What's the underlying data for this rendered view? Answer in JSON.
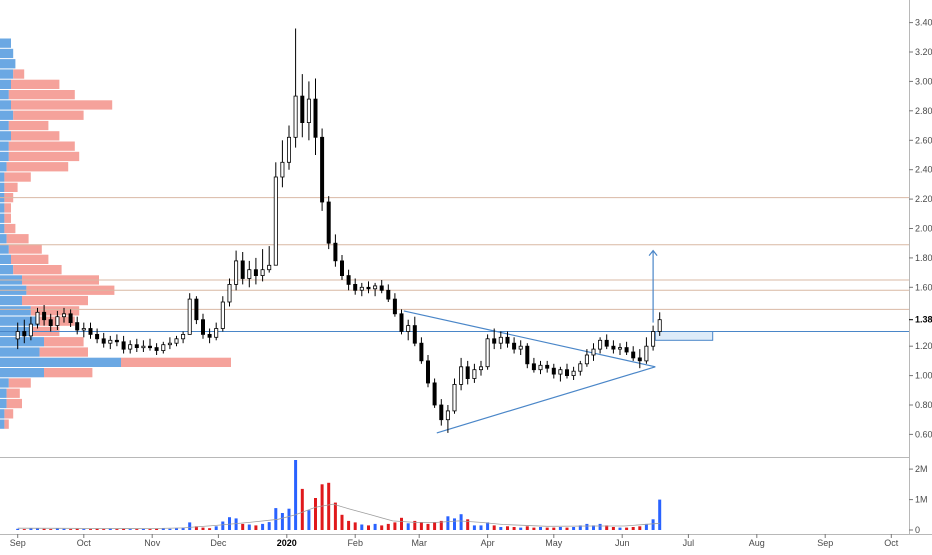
{
  "chart_data": {
    "type": "candlestick",
    "y_axis": {
      "ticks": [
        "0.60",
        "0.80",
        "1.00",
        "1.20",
        "1.38",
        "1.60",
        "1.80",
        "2.00",
        "2.20",
        "2.40",
        "2.60",
        "2.80",
        "3.00",
        "3.20",
        "3.40"
      ],
      "tick_values": [
        0.6,
        0.8,
        1.0,
        1.2,
        1.38,
        1.6,
        1.8,
        2.0,
        2.2,
        2.4,
        2.6,
        2.8,
        3.0,
        3.2,
        3.4
      ],
      "range": [
        0.46,
        3.54
      ],
      "last_price_label": "1.38",
      "last_price": 1.38
    },
    "volume_axis": {
      "ticks": [
        "0",
        "1M",
        "2M"
      ],
      "tick_values": [
        0,
        1000000,
        2000000
      ],
      "range": [
        0,
        2300000
      ]
    },
    "x_axis": {
      "labels": [
        "Sep",
        "Oct",
        "Nov",
        "Dec",
        "2020",
        "Feb",
        "Mar",
        "Apr",
        "May",
        "Jun",
        "Jul",
        "Aug",
        "Sep",
        "Oct"
      ],
      "bold_label": "2020",
      "label_day_index": [
        0,
        30,
        61,
        91,
        122,
        153,
        182,
        213,
        243,
        274,
        304,
        335,
        366,
        396
      ],
      "range_days": [
        -8,
        404
      ]
    },
    "horizontal_levels": [
      {
        "price": 2.21,
        "color": "#d9b8a4"
      },
      {
        "price": 1.89,
        "color": "#d9b8a4"
      },
      {
        "price": 1.65,
        "color": "#d9b8a4"
      },
      {
        "price": 1.58,
        "color": "#d9b8a4"
      },
      {
        "price": 1.45,
        "color": "#d9b8a4"
      },
      {
        "price": 1.3,
        "color": "#4a86c8"
      }
    ],
    "trendlines": [
      {
        "from": [
          175,
          1.44
        ],
        "to": [
          289,
          1.06
        ],
        "color": "#4a86c8"
      },
      {
        "from": [
          190,
          0.61
        ],
        "to": [
          289,
          1.06
        ],
        "color": "#4a86c8"
      }
    ],
    "target_arrow": {
      "day": 288,
      "from_price": 1.36,
      "to_price": 1.85,
      "color": "#4a86c8"
    },
    "zone_box": {
      "day_start": 289,
      "day_end": 315,
      "price_low": 1.24,
      "price_high": 1.3,
      "color": "#4a86c8"
    },
    "colors": {
      "up": "#ffffff",
      "down": "#000000",
      "wick": "#000000",
      "vol_up": "#2962ff",
      "vol_down": "#e0191c",
      "vp_up": "#5b9ee0",
      "vp_down": "#f28b82",
      "grid": "#e6e6e6",
      "axis_text": "#4a4a4a"
    },
    "candles": [
      [
        0,
        1.25,
        1.36,
        1.18,
        1.3
      ],
      [
        3,
        1.3,
        1.38,
        1.22,
        1.27
      ],
      [
        6,
        1.27,
        1.4,
        1.24,
        1.35
      ],
      [
        9,
        1.35,
        1.46,
        1.32,
        1.43
      ],
      [
        12,
        1.43,
        1.48,
        1.34,
        1.38
      ],
      [
        15,
        1.38,
        1.42,
        1.3,
        1.34
      ],
      [
        18,
        1.34,
        1.44,
        1.31,
        1.4
      ],
      [
        21,
        1.4,
        1.46,
        1.36,
        1.42
      ],
      [
        24,
        1.42,
        1.45,
        1.33,
        1.36
      ],
      [
        27,
        1.36,
        1.4,
        1.28,
        1.31
      ],
      [
        30,
        1.31,
        1.36,
        1.26,
        1.32
      ],
      [
        33,
        1.32,
        1.36,
        1.25,
        1.28
      ],
      [
        36,
        1.28,
        1.32,
        1.22,
        1.25
      ],
      [
        39,
        1.25,
        1.29,
        1.19,
        1.22
      ],
      [
        42,
        1.22,
        1.27,
        1.18,
        1.24
      ],
      [
        45,
        1.24,
        1.28,
        1.2,
        1.23
      ],
      [
        48,
        1.23,
        1.27,
        1.15,
        1.18
      ],
      [
        51,
        1.18,
        1.24,
        1.15,
        1.21
      ],
      [
        54,
        1.21,
        1.25,
        1.16,
        1.19
      ],
      [
        57,
        1.19,
        1.24,
        1.16,
        1.2
      ],
      [
        60,
        1.2,
        1.25,
        1.17,
        1.19
      ],
      [
        63,
        1.19,
        1.22,
        1.14,
        1.17
      ],
      [
        66,
        1.17,
        1.23,
        1.15,
        1.21
      ],
      [
        69,
        1.21,
        1.26,
        1.18,
        1.22
      ],
      [
        72,
        1.22,
        1.27,
        1.2,
        1.25
      ],
      [
        75,
        1.25,
        1.3,
        1.22,
        1.28
      ],
      [
        78,
        1.28,
        1.56,
        1.28,
        1.52
      ],
      [
        81,
        1.52,
        1.54,
        1.35,
        1.38
      ],
      [
        84,
        1.38,
        1.42,
        1.25,
        1.28
      ],
      [
        87,
        1.28,
        1.32,
        1.22,
        1.26
      ],
      [
        90,
        1.26,
        1.36,
        1.24,
        1.32
      ],
      [
        93,
        1.32,
        1.54,
        1.3,
        1.5
      ],
      [
        96,
        1.5,
        1.66,
        1.47,
        1.62
      ],
      [
        99,
        1.62,
        1.85,
        1.58,
        1.78
      ],
      [
        102,
        1.78,
        1.84,
        1.62,
        1.66
      ],
      [
        105,
        1.66,
        1.78,
        1.6,
        1.72
      ],
      [
        108,
        1.72,
        1.8,
        1.62,
        1.68
      ],
      [
        111,
        1.68,
        1.86,
        1.64,
        1.72
      ],
      [
        114,
        1.72,
        1.88,
        1.7,
        1.75
      ],
      [
        117,
        1.75,
        2.45,
        1.75,
        2.35
      ],
      [
        120,
        2.35,
        2.6,
        2.28,
        2.45
      ],
      [
        123,
        2.45,
        2.7,
        2.4,
        2.62
      ],
      [
        126,
        2.62,
        3.36,
        2.55,
        2.9
      ],
      [
        129,
        2.9,
        3.05,
        2.62,
        2.72
      ],
      [
        132,
        2.72,
        3.0,
        2.6,
        2.88
      ],
      [
        135,
        2.88,
        3.02,
        2.5,
        2.62
      ],
      [
        138,
        2.62,
        2.68,
        2.12,
        2.18
      ],
      [
        141,
        2.18,
        2.22,
        1.86,
        1.9
      ],
      [
        144,
        1.9,
        1.96,
        1.74,
        1.78
      ],
      [
        147,
        1.78,
        1.82,
        1.65,
        1.68
      ],
      [
        150,
        1.68,
        1.72,
        1.58,
        1.62
      ],
      [
        153,
        1.62,
        1.66,
        1.55,
        1.58
      ],
      [
        156,
        1.58,
        1.63,
        1.54,
        1.6
      ],
      [
        159,
        1.6,
        1.64,
        1.56,
        1.59
      ],
      [
        162,
        1.59,
        1.63,
        1.54,
        1.61
      ],
      [
        165,
        1.61,
        1.65,
        1.56,
        1.58
      ],
      [
        168,
        1.58,
        1.62,
        1.5,
        1.52
      ],
      [
        171,
        1.52,
        1.56,
        1.4,
        1.42
      ],
      [
        174,
        1.42,
        1.45,
        1.28,
        1.3
      ],
      [
        177,
        1.3,
        1.38,
        1.24,
        1.34
      ],
      [
        180,
        1.34,
        1.4,
        1.2,
        1.22
      ],
      [
        183,
        1.22,
        1.26,
        1.08,
        1.1
      ],
      [
        186,
        1.1,
        1.14,
        0.92,
        0.95
      ],
      [
        189,
        0.95,
        0.98,
        0.78,
        0.8
      ],
      [
        192,
        0.8,
        0.84,
        0.66,
        0.7
      ],
      [
        195,
        0.7,
        0.8,
        0.61,
        0.76
      ],
      [
        198,
        0.76,
        0.98,
        0.74,
        0.94
      ],
      [
        201,
        0.94,
        1.12,
        0.9,
        1.06
      ],
      [
        204,
        1.06,
        1.1,
        0.94,
        0.98
      ],
      [
        207,
        0.98,
        1.08,
        0.95,
        1.04
      ],
      [
        210,
        1.04,
        1.1,
        1.0,
        1.06
      ],
      [
        213,
        1.06,
        1.28,
        1.04,
        1.25
      ],
      [
        216,
        1.25,
        1.32,
        1.18,
        1.22
      ],
      [
        219,
        1.22,
        1.3,
        1.18,
        1.26
      ],
      [
        222,
        1.26,
        1.3,
        1.19,
        1.22
      ],
      [
        225,
        1.22,
        1.26,
        1.15,
        1.18
      ],
      [
        228,
        1.18,
        1.24,
        1.14,
        1.2
      ],
      [
        231,
        1.2,
        1.22,
        1.05,
        1.08
      ],
      [
        234,
        1.08,
        1.12,
        1.02,
        1.04
      ],
      [
        237,
        1.04,
        1.1,
        1.01,
        1.07
      ],
      [
        240,
        1.07,
        1.1,
        1.02,
        1.05
      ],
      [
        243,
        1.05,
        1.08,
        0.98,
        1.01
      ],
      [
        246,
        1.01,
        1.06,
        0.96,
        1.04
      ],
      [
        249,
        1.04,
        1.08,
        0.98,
        1.0
      ],
      [
        252,
        1.0,
        1.06,
        0.97,
        1.03
      ],
      [
        255,
        1.03,
        1.1,
        1.0,
        1.08
      ],
      [
        258,
        1.08,
        1.18,
        1.06,
        1.14
      ],
      [
        261,
        1.14,
        1.22,
        1.1,
        1.18
      ],
      [
        264,
        1.18,
        1.26,
        1.15,
        1.24
      ],
      [
        267,
        1.24,
        1.28,
        1.18,
        1.2
      ],
      [
        270,
        1.2,
        1.24,
        1.15,
        1.18
      ],
      [
        273,
        1.18,
        1.22,
        1.14,
        1.19
      ],
      [
        276,
        1.19,
        1.23,
        1.14,
        1.16
      ],
      [
        279,
        1.16,
        1.2,
        1.1,
        1.12
      ],
      [
        282,
        1.12,
        1.18,
        1.05,
        1.1
      ],
      [
        285,
        1.1,
        1.26,
        1.08,
        1.2
      ],
      [
        288,
        1.2,
        1.34,
        1.17,
        1.3
      ],
      [
        291,
        1.3,
        1.43,
        1.27,
        1.38
      ]
    ],
    "volumes": [
      [
        0,
        40000,
        1
      ],
      [
        3,
        30000,
        0
      ],
      [
        6,
        50000,
        1
      ],
      [
        9,
        60000,
        1
      ],
      [
        12,
        40000,
        0
      ],
      [
        15,
        30000,
        0
      ],
      [
        18,
        50000,
        1
      ],
      [
        21,
        40000,
        1
      ],
      [
        24,
        30000,
        0
      ],
      [
        27,
        40000,
        0
      ],
      [
        30,
        30000,
        1
      ],
      [
        33,
        30000,
        0
      ],
      [
        36,
        40000,
        0
      ],
      [
        39,
        30000,
        0
      ],
      [
        42,
        50000,
        1
      ],
      [
        45,
        30000,
        0
      ],
      [
        48,
        40000,
        0
      ],
      [
        51,
        30000,
        1
      ],
      [
        54,
        30000,
        0
      ],
      [
        57,
        40000,
        1
      ],
      [
        60,
        30000,
        0
      ],
      [
        63,
        40000,
        0
      ],
      [
        66,
        50000,
        1
      ],
      [
        69,
        40000,
        1
      ],
      [
        72,
        60000,
        1
      ],
      [
        75,
        80000,
        1
      ],
      [
        78,
        250000,
        1
      ],
      [
        81,
        120000,
        0
      ],
      [
        84,
        80000,
        0
      ],
      [
        87,
        60000,
        0
      ],
      [
        90,
        120000,
        1
      ],
      [
        93,
        280000,
        1
      ],
      [
        96,
        420000,
        1
      ],
      [
        99,
        380000,
        1
      ],
      [
        102,
        200000,
        0
      ],
      [
        105,
        180000,
        1
      ],
      [
        108,
        150000,
        0
      ],
      [
        111,
        200000,
        1
      ],
      [
        114,
        260000,
        1
      ],
      [
        117,
        720000,
        1
      ],
      [
        120,
        560000,
        1
      ],
      [
        123,
        700000,
        1
      ],
      [
        126,
        2300000,
        1
      ],
      [
        129,
        1350000,
        0
      ],
      [
        132,
        650000,
        1
      ],
      [
        135,
        1050000,
        0
      ],
      [
        138,
        1500000,
        0
      ],
      [
        141,
        1550000,
        0
      ],
      [
        144,
        900000,
        0
      ],
      [
        147,
        500000,
        0
      ],
      [
        150,
        300000,
        0
      ],
      [
        153,
        250000,
        0
      ],
      [
        156,
        180000,
        1
      ],
      [
        159,
        150000,
        0
      ],
      [
        162,
        200000,
        1
      ],
      [
        165,
        150000,
        0
      ],
      [
        168,
        200000,
        0
      ],
      [
        171,
        250000,
        0
      ],
      [
        174,
        400000,
        0
      ],
      [
        177,
        220000,
        1
      ],
      [
        180,
        300000,
        0
      ],
      [
        183,
        250000,
        0
      ],
      [
        186,
        200000,
        0
      ],
      [
        189,
        250000,
        0
      ],
      [
        192,
        300000,
        0
      ],
      [
        195,
        450000,
        1
      ],
      [
        198,
        380000,
        1
      ],
      [
        201,
        520000,
        1
      ],
      [
        204,
        350000,
        0
      ],
      [
        207,
        150000,
        1
      ],
      [
        210,
        150000,
        1
      ],
      [
        213,
        250000,
        1
      ],
      [
        216,
        150000,
        0
      ],
      [
        219,
        100000,
        1
      ],
      [
        222,
        120000,
        0
      ],
      [
        225,
        100000,
        0
      ],
      [
        228,
        80000,
        1
      ],
      [
        231,
        120000,
        0
      ],
      [
        234,
        80000,
        0
      ],
      [
        237,
        100000,
        1
      ],
      [
        240,
        80000,
        0
      ],
      [
        243,
        80000,
        0
      ],
      [
        246,
        100000,
        1
      ],
      [
        249,
        80000,
        0
      ],
      [
        252,
        100000,
        1
      ],
      [
        255,
        150000,
        1
      ],
      [
        258,
        200000,
        1
      ],
      [
        261,
        150000,
        1
      ],
      [
        264,
        200000,
        1
      ],
      [
        267,
        150000,
        0
      ],
      [
        270,
        100000,
        0
      ],
      [
        273,
        80000,
        1
      ],
      [
        276,
        80000,
        0
      ],
      [
        279,
        100000,
        0
      ],
      [
        282,
        120000,
        0
      ],
      [
        285,
        200000,
        1
      ],
      [
        288,
        350000,
        1
      ],
      [
        291,
        1000000,
        1
      ]
    ],
    "volume_ma": [
      [
        0,
        60000
      ],
      [
        20,
        55000
      ],
      [
        40,
        50000
      ],
      [
        60,
        45000
      ],
      [
        75,
        70000
      ],
      [
        90,
        150000
      ],
      [
        105,
        250000
      ],
      [
        118,
        350000
      ],
      [
        126,
        500000
      ],
      [
        135,
        750000
      ],
      [
        143,
        850000
      ],
      [
        150,
        700000
      ],
      [
        160,
        500000
      ],
      [
        170,
        300000
      ],
      [
        180,
        250000
      ],
      [
        190,
        250000
      ],
      [
        200,
        300000
      ],
      [
        210,
        250000
      ],
      [
        220,
        180000
      ],
      [
        240,
        120000
      ],
      [
        260,
        130000
      ],
      [
        275,
        130000
      ],
      [
        291,
        220000
      ]
    ],
    "volume_profile": [
      [
        3.26,
        0.05,
        0.0
      ],
      [
        3.19,
        0.06,
        0.0
      ],
      [
        3.12,
        0.07,
        0.0
      ],
      [
        3.05,
        0.06,
        0.05
      ],
      [
        2.98,
        0.05,
        0.22
      ],
      [
        2.91,
        0.04,
        0.3
      ],
      [
        2.84,
        0.05,
        0.46
      ],
      [
        2.77,
        0.06,
        0.32
      ],
      [
        2.7,
        0.04,
        0.18
      ],
      [
        2.63,
        0.05,
        0.22
      ],
      [
        2.56,
        0.04,
        0.3
      ],
      [
        2.49,
        0.04,
        0.32
      ],
      [
        2.42,
        0.03,
        0.28
      ],
      [
        2.35,
        0.02,
        0.12
      ],
      [
        2.28,
        0.02,
        0.06
      ],
      [
        2.21,
        0.02,
        0.04
      ],
      [
        2.14,
        0.02,
        0.03
      ],
      [
        2.07,
        0.02,
        0.03
      ],
      [
        2.0,
        0.02,
        0.05
      ],
      [
        1.93,
        0.03,
        0.1
      ],
      [
        1.86,
        0.04,
        0.15
      ],
      [
        1.79,
        0.05,
        0.17
      ],
      [
        1.72,
        0.06,
        0.22
      ],
      [
        1.65,
        0.1,
        0.35
      ],
      [
        1.58,
        0.12,
        0.4
      ],
      [
        1.51,
        0.1,
        0.3
      ],
      [
        1.44,
        0.14,
        0.22
      ],
      [
        1.37,
        0.18,
        0.16
      ],
      [
        1.3,
        0.15,
        0.12
      ],
      [
        1.23,
        0.2,
        0.18
      ],
      [
        1.16,
        0.18,
        0.22
      ],
      [
        1.09,
        0.55,
        0.5
      ],
      [
        1.02,
        0.2,
        0.22
      ],
      [
        0.95,
        0.04,
        0.1
      ],
      [
        0.88,
        0.03,
        0.06
      ],
      [
        0.81,
        0.03,
        0.07
      ],
      [
        0.74,
        0.02,
        0.04
      ],
      [
        0.67,
        0.02,
        0.02
      ]
    ]
  }
}
